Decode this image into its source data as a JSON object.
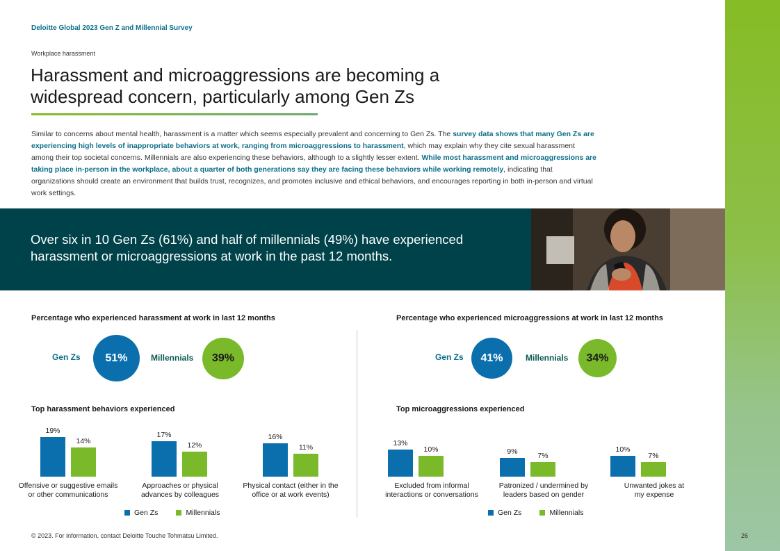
{
  "header": {
    "survey_title": "Deloitte Global 2023 Gen Z and Millennial Survey",
    "section_label": "Workplace harassment",
    "title": "Harassment and microaggressions are becoming a widespread concern, particularly among Gen Zs"
  },
  "intro": {
    "p1": "Similar to concerns about mental health, harassment is a matter which seems especially prevalent and concerning to Gen Zs. The ",
    "h1": "survey data shows that many Gen Zs are experiencing high levels of inappropriate behaviors at work, ranging from microaggressions to harassment",
    "p2": ", which may explain why they cite sexual harassment among their top societal concerns. Millennials are also experiencing these behaviors, although to a slightly lesser extent. ",
    "h2": "While most harassment and microaggressions are taking place in-person in the workplace, about a quarter of both generations say they are facing these behaviors while working remotely",
    "p3": ", indicating that organizations should create an environment that builds trust, recognizes, and promotes inclusive and ethical behaviors, and encourages reporting in both in-person and virtual work settings."
  },
  "banner": {
    "text": "Over six in 10 Gen Zs (61%) and half of millennials (49%) have experienced harassment or microaggressions at work in the past 12 months."
  },
  "colors": {
    "gen_z": "#0b6fae",
    "millennials": "#7ab92a",
    "teal_dark": "#00424a"
  },
  "harassment": {
    "heading": "Percentage who experienced  harassment at work in last 12 months",
    "gen_z_label": "Gen Zs",
    "gen_z_value": "51%",
    "millennials_label": "Millennials",
    "millennials_value": "39%",
    "sub_heading": "Top harassment behaviors experienced"
  },
  "microaggressions": {
    "heading": "Percentage who experienced microaggressions at work in last 12 months",
    "gen_z_label": "Gen Zs",
    "gen_z_value": "41%",
    "millennials_label": "Millennials",
    "millennials_value": "34%",
    "sub_heading": "Top microaggressions experienced"
  },
  "legend": {
    "gen_z": "Gen Zs",
    "millennials": "Millennials"
  },
  "chart_data": [
    {
      "type": "bar",
      "categories": [
        "Offensive or suggestive emails or other communications",
        "Approaches or physical advances by colleagues",
        "Physical contact (either in the office or at work events)"
      ],
      "category_lines": [
        [
          "Offensive or suggestive emails",
          "or other communications"
        ],
        [
          "Approaches or physical",
          "advances by colleagues"
        ],
        [
          "Physical contact (either in the",
          "office or at work events)"
        ]
      ],
      "series": [
        {
          "name": "Gen Zs",
          "values": [
            19,
            17,
            16
          ],
          "labels": [
            "19%",
            "17%",
            "16%"
          ]
        },
        {
          "name": "Millennials",
          "values": [
            14,
            12,
            11
          ],
          "labels": [
            "14%",
            "12%",
            "11%"
          ]
        }
      ],
      "legend": "bottom"
    },
    {
      "type": "bar",
      "categories": [
        "Excluded from informal interactions or conversations",
        "Patronized / undermined by leaders based on gender",
        "Unwanted jokes at my expense"
      ],
      "category_lines": [
        [
          "Excluded from informal",
          "interactions or conversations"
        ],
        [
          "Patronized / undermined by",
          "leaders based on gender"
        ],
        [
          "Unwanted jokes at",
          "my expense"
        ]
      ],
      "series": [
        {
          "name": "Gen Zs",
          "values": [
            13,
            9,
            10
          ],
          "labels": [
            "13%",
            "9%",
            "10%"
          ]
        },
        {
          "name": "Millennials",
          "values": [
            10,
            7,
            7
          ],
          "labels": [
            "10%",
            "7%",
            "7%"
          ]
        }
      ],
      "legend": "bottom"
    }
  ],
  "footer": {
    "copyright": "© 2023. For information, contact Deloitte Touche Tohmatsu Limited.",
    "page_number": "26"
  }
}
